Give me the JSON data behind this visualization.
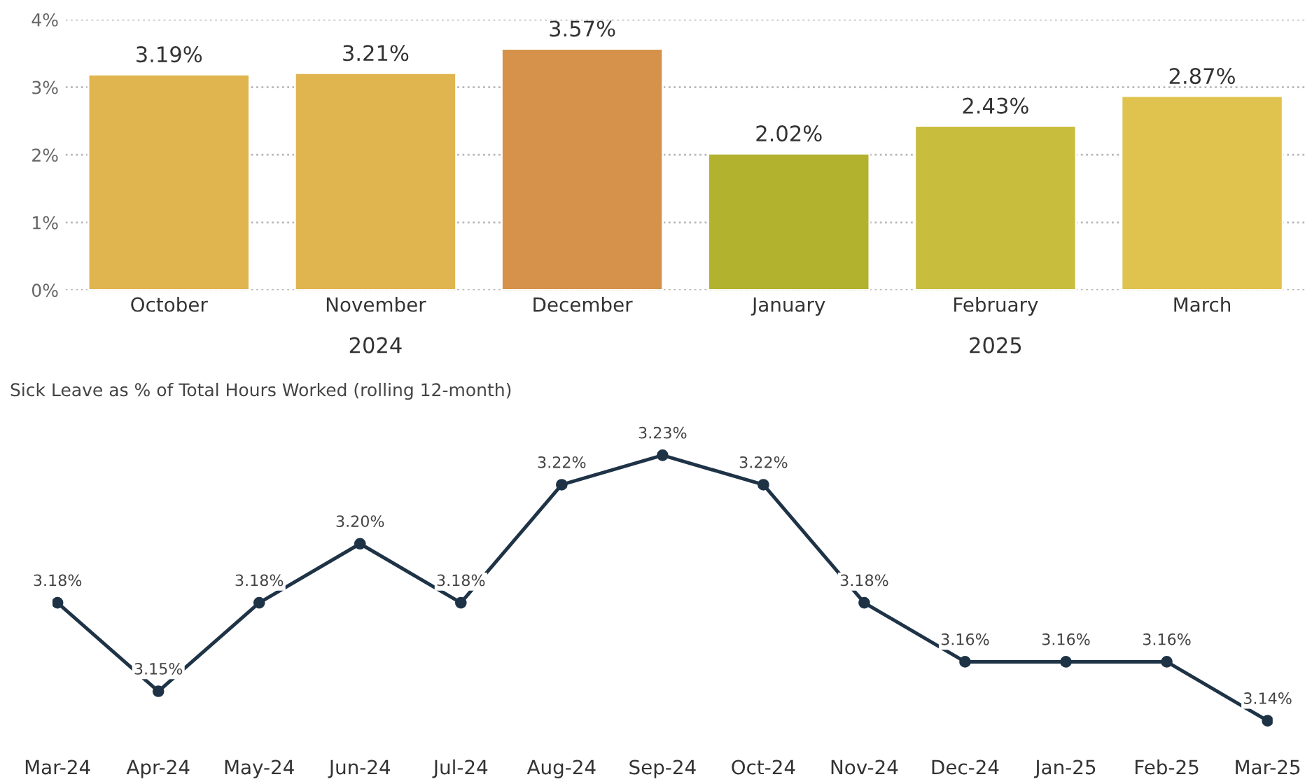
{
  "chart_data": [
    {
      "type": "bar",
      "categories": [
        "October",
        "November",
        "December",
        "January",
        "February",
        "March"
      ],
      "values": [
        3.19,
        3.21,
        3.57,
        2.02,
        2.43,
        2.87
      ],
      "colors": [
        "#e0b44e",
        "#e0b44e",
        "#d6924a",
        "#b2b22e",
        "#c9bd3e",
        "#e0c24e"
      ],
      "value_labels": [
        "3.19%",
        "3.21%",
        "3.57%",
        "2.02%",
        "2.43%",
        "2.87%"
      ],
      "ylim": [
        0,
        4
      ],
      "yticks": [
        {
          "value": 0,
          "label": "0%"
        },
        {
          "value": 1,
          "label": "1%"
        },
        {
          "value": 2,
          "label": "2%"
        },
        {
          "value": 3,
          "label": "3%"
        },
        {
          "value": 4,
          "label": "4%"
        }
      ],
      "grid": "y",
      "annotations": [
        "2024",
        "2025"
      ]
    },
    {
      "type": "line",
      "title": "Sick Leave as % of Total Hours Worked (rolling 12-month)",
      "categories": [
        "Mar-24",
        "Apr-24",
        "May-24",
        "Jun-24",
        "Jul-24",
        "Aug-24",
        "Sep-24",
        "Oct-24",
        "Nov-24",
        "Dec-24",
        "Jan-25",
        "Feb-25",
        "Mar-25"
      ],
      "series": [
        {
          "color": "#1f3347",
          "values": [
            3.18,
            3.15,
            3.18,
            3.2,
            3.18,
            3.22,
            3.23,
            3.22,
            3.18,
            3.16,
            3.16,
            3.16,
            3.14
          ],
          "value_labels": [
            "3.18%",
            "3.15%",
            "3.18%",
            "3.20%",
            "3.18%",
            "3.22%",
            "3.23%",
            "3.22%",
            "3.18%",
            "3.16%",
            "3.16%",
            "3.16%",
            "3.14%"
          ]
        }
      ],
      "marker": "circle",
      "line_style": "solid",
      "tick_labels": "x",
      "grid": false
    }
  ]
}
